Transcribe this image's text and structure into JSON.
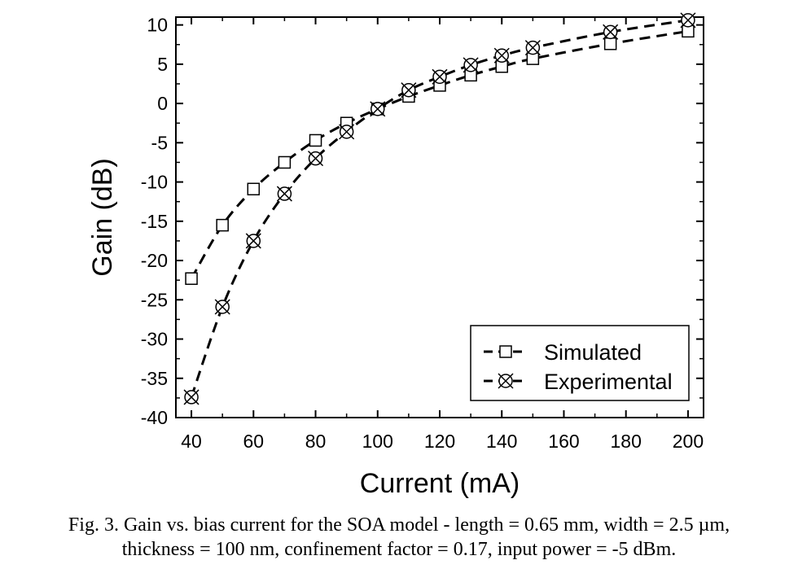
{
  "chart_data": {
    "type": "line",
    "xlabel": "Current (mA)",
    "ylabel": "Gain (dB)",
    "xlim": [
      35,
      205
    ],
    "ylim": [
      -40,
      11
    ],
    "x_ticks": [
      40,
      60,
      80,
      100,
      120,
      140,
      160,
      180,
      200
    ],
    "y_ticks": [
      10,
      5,
      0,
      -5,
      -10,
      -15,
      -20,
      -25,
      -30,
      -35,
      -40
    ],
    "legend_position": "bottom-right",
    "grid": false,
    "series": [
      {
        "name": "Simulated",
        "marker": "open-square",
        "line_style": "dashed",
        "x": [
          40,
          50,
          60,
          70,
          80,
          90,
          100,
          110,
          120,
          130,
          140,
          150,
          175,
          200
        ],
        "y": [
          -22.3,
          -15.5,
          -10.9,
          -7.5,
          -4.7,
          -2.5,
          -0.7,
          0.9,
          2.3,
          3.6,
          4.7,
          5.7,
          7.6,
          9.2
        ]
      },
      {
        "name": "Experimental",
        "marker": "crossed-circle",
        "line_style": "dashed",
        "x": [
          40,
          50,
          60,
          70,
          80,
          90,
          100,
          110,
          120,
          130,
          140,
          150,
          175,
          200
        ],
        "y": [
          -37.4,
          -25.9,
          -17.5,
          -11.5,
          -7.0,
          -3.6,
          -0.7,
          1.7,
          3.4,
          4.9,
          6.1,
          7.1,
          9.1,
          10.6
        ]
      }
    ]
  },
  "caption": {
    "line1": "Fig. 3. Gain vs. bias current for the SOA model - length = 0.65 mm, width = 2.5 µm,",
    "line2": "thickness = 100 nm, confinement factor = 0.17, input power = -5 dBm."
  }
}
